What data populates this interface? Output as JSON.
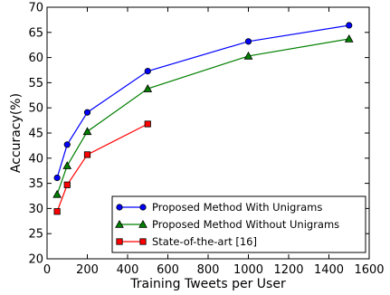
{
  "chart_data": {
    "type": "line",
    "title": "",
    "xlabel": "Training Tweets per User",
    "ylabel": "Accuracy(%)",
    "xlim": [
      0,
      1600
    ],
    "ylim": [
      20,
      70
    ],
    "xticks": [
      0,
      200,
      400,
      600,
      800,
      1000,
      1200,
      1400,
      1600
    ],
    "yticks": [
      20,
      25,
      30,
      35,
      40,
      45,
      50,
      55,
      60,
      65,
      70
    ],
    "grid": false,
    "legend_position": "lower-right",
    "series": [
      {
        "name": "Proposed Method With Unigrams",
        "color": "#0000ff",
        "marker": "circle",
        "x": [
          50,
          100,
          200,
          500,
          1000,
          1500
        ],
        "y": [
          36.1,
          42.7,
          49.1,
          57.3,
          63.2,
          66.4
        ]
      },
      {
        "name": "Proposed Method Without Unigrams",
        "color": "#007f00",
        "marker": "triangle",
        "x": [
          50,
          100,
          200,
          500,
          1000,
          1500
        ],
        "y": [
          32.8,
          38.5,
          45.3,
          53.8,
          60.3,
          63.7
        ]
      },
      {
        "name": "State-of-the-art [16]",
        "color": "#ff0000",
        "marker": "square",
        "x": [
          50,
          100,
          200,
          500
        ],
        "y": [
          29.4,
          34.7,
          40.7,
          46.8
        ]
      }
    ]
  }
}
